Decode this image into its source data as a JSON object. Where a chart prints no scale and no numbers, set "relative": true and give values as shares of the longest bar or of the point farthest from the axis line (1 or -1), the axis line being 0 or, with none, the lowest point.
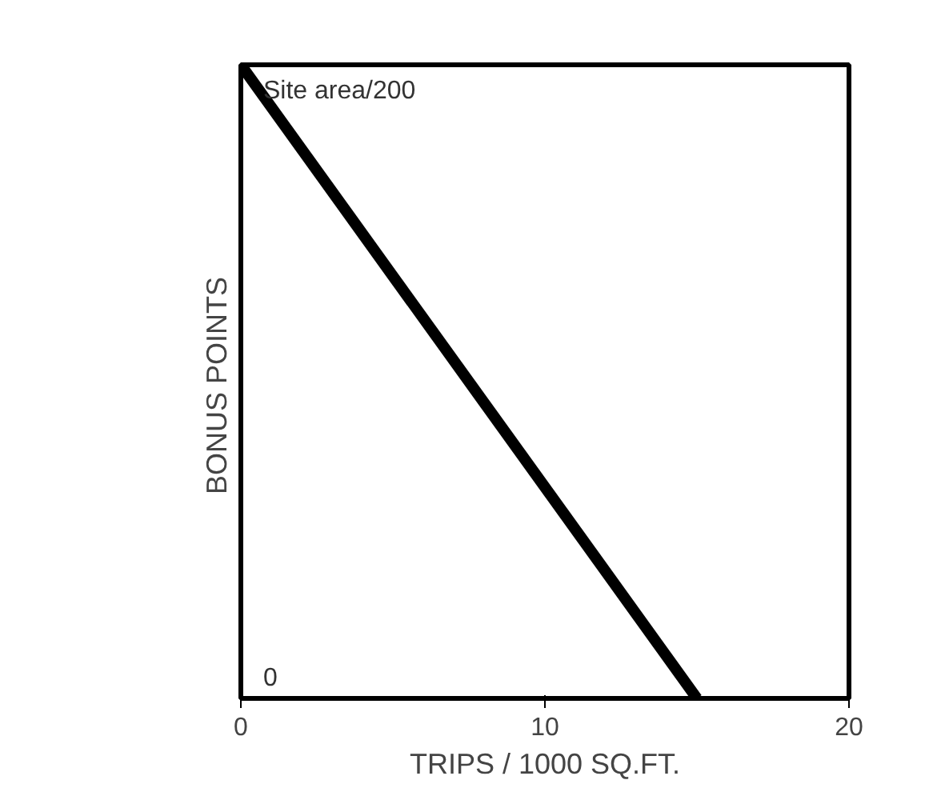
{
  "chart_data": {
    "type": "line",
    "xlabel": "TRIPS / 1000 SQ.FT.",
    "ylabel": "BONUS  POINTS",
    "x": [
      0,
      15
    ],
    "series": [
      {
        "color": "#000000",
        "values": [
          1,
          0
        ]
      }
    ],
    "relative": true,
    "xlim": [
      0,
      20
    ],
    "xticks": [
      0,
      10,
      20
    ],
    "annotations": [
      {
        "text": "Site area/200",
        "x": 0,
        "y": 1
      },
      "0"
    ],
    "grid": false,
    "marker": "none",
    "line_style": "solid"
  }
}
